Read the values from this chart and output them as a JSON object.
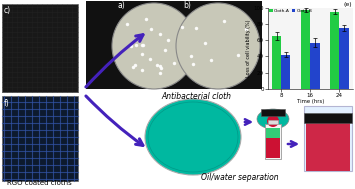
{
  "background_color": "#e8e8e8",
  "bar_chart": {
    "times": [
      8,
      16,
      24
    ],
    "cloth_a": [
      65,
      97,
      95
    ],
    "cloth_b": [
      42,
      57,
      75
    ],
    "cloth_a_color": "#22cc44",
    "cloth_b_color": "#2244cc",
    "ylabel": "Loss of cell viability (%)",
    "xlabel": "Time (hrs)",
    "chart_label": "(e)",
    "ylim": [
      0,
      100
    ],
    "legend_a": "Cloth-A",
    "legend_b": "Cloth-B"
  },
  "labels": {
    "rgo": "RGO coated cloths",
    "antibacterial": "Antibacterial cloth",
    "oilwater": "Oil/water separation",
    "panel_c": "c)",
    "panel_f": "f)",
    "panel_a": "a)",
    "panel_b": "b)"
  },
  "colors": {
    "cloth_c_bg": "#181818",
    "cloth_c_grid": "#333333",
    "cloth_f_bg": "#0d1a2e",
    "cloth_f_grid": "#2244aa",
    "petri_bg": "#c8c8b8",
    "petri_edge": "#888888",
    "teal": "#00b8a0",
    "red": "#cc1133",
    "black_strip": "#111111",
    "beaker_bg": "#ddeeff",
    "arrow": "#4422bb",
    "white": "#ffffff",
    "label_text": "#000000"
  }
}
